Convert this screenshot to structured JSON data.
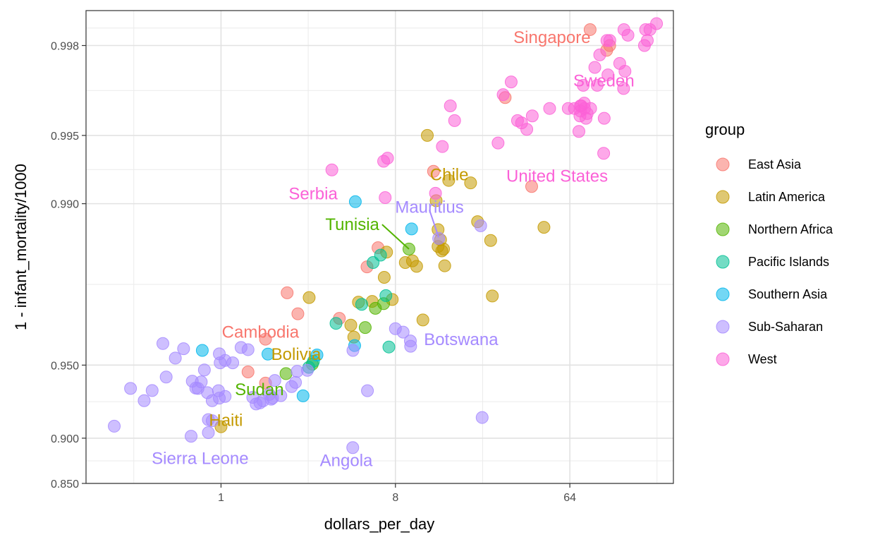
{
  "chart_data": {
    "type": "scatter",
    "xlabel": "dollars_per_day",
    "ylabel": "1 - infant_mortality/1000",
    "x_scale": "log2",
    "y_scale": "logit",
    "xlim": [
      0.2,
      220
    ],
    "ylim": [
      0.85,
      0.9986
    ],
    "x_ticks": [
      {
        "value": 1,
        "label": "1"
      },
      {
        "value": 8,
        "label": "8"
      },
      {
        "value": 64,
        "label": "64"
      }
    ],
    "y_ticks": [
      {
        "value": 0.85,
        "label": "0.850"
      },
      {
        "value": 0.9,
        "label": "0.900"
      },
      {
        "value": 0.95,
        "label": "0.950"
      },
      {
        "value": 0.99,
        "label": "0.990"
      },
      {
        "value": 0.995,
        "label": "0.995"
      },
      {
        "value": 0.998,
        "label": "0.998"
      }
    ],
    "grid": true,
    "legend": {
      "title": "group",
      "position": "right"
    },
    "groups": [
      {
        "name": "East Asia",
        "color": "#F8766D"
      },
      {
        "name": "Latin America",
        "color": "#C49A00"
      },
      {
        "name": "Northern Africa",
        "color": "#53B400"
      },
      {
        "name": "Pacific Islands",
        "color": "#00C094"
      },
      {
        "name": "Southern Asia",
        "color": "#00B6EB"
      },
      {
        "name": "Sub-Saharan",
        "color": "#A58AFF"
      },
      {
        "name": "West",
        "color": "#FB61D7"
      }
    ],
    "series": [
      {
        "name": "East Asia",
        "points": [
          [
            1.7,
            0.9405
          ],
          [
            1.7,
            0.9612
          ],
          [
            1.38,
            0.9466
          ],
          [
            2.2,
            0.9755
          ],
          [
            2.5,
            0.9698
          ],
          [
            4.1,
            0.9684
          ],
          [
            5.7,
            0.9811
          ],
          [
            6.5,
            0.9844
          ],
          [
            12.6,
            0.9928
          ],
          [
            40.6,
            0.9916
          ],
          [
            29.6,
            0.9966
          ],
          [
            81.5,
            0.9983
          ],
          [
            102.9,
            0.998
          ],
          [
            99.3,
            0.9979
          ]
        ]
      },
      {
        "name": "Latin America",
        "points": [
          [
            1.0,
            0.9101
          ],
          [
            2.86,
            0.9743
          ],
          [
            4.7,
            0.9662
          ],
          [
            4.87,
            0.962
          ],
          [
            5.15,
            0.9731
          ],
          [
            6.06,
            0.9733
          ],
          [
            7.0,
            0.979
          ],
          [
            7.7,
            0.9738
          ],
          [
            7.2,
            0.9837
          ],
          [
            9.0,
            0.9819
          ],
          [
            9.8,
            0.9822
          ],
          [
            10.3,
            0.9812
          ],
          [
            11.1,
            0.9679
          ],
          [
            11.7,
            0.995
          ],
          [
            13.0,
            0.9903
          ],
          [
            13.3,
            0.987
          ],
          [
            13.3,
            0.9846
          ],
          [
            13.9,
            0.9839
          ],
          [
            13.7,
            0.9856
          ],
          [
            14.4,
            0.9813
          ],
          [
            14.2,
            0.9842
          ],
          [
            15.1,
            0.9921
          ],
          [
            19.6,
            0.9919
          ],
          [
            21.3,
            0.988
          ],
          [
            24.9,
            0.9855
          ],
          [
            25.4,
            0.9747
          ],
          [
            47.0,
            0.9873
          ]
        ]
      },
      {
        "name": "Northern Africa",
        "points": [
          [
            2.17,
            0.9457
          ],
          [
            2.97,
            0.9505
          ],
          [
            5.58,
            0.9654
          ],
          [
            6.3,
            0.9714
          ],
          [
            6.95,
            0.9727
          ],
          [
            9.4,
            0.9842
          ]
        ]
      },
      {
        "name": "Pacific Islands",
        "points": [
          [
            2.85,
            0.9489
          ],
          [
            3.01,
            0.9518
          ],
          [
            3.94,
            0.9668
          ],
          [
            5.35,
            0.9725
          ],
          [
            6.13,
            0.9819
          ],
          [
            6.7,
            0.9832
          ],
          [
            7.14,
            0.9748
          ],
          [
            7.4,
            0.9581
          ]
        ]
      },
      {
        "name": "Southern Asia",
        "points": [
          [
            0.8,
            0.9567
          ],
          [
            1.75,
            0.9551
          ],
          [
            2.66,
            0.9328
          ],
          [
            3.14,
            0.9547
          ],
          [
            4.92,
            0.9587
          ],
          [
            4.96,
            0.9902
          ],
          [
            9.7,
            0.9871
          ]
        ]
      },
      {
        "name": "Sub-Saharan",
        "points": [
          [
            0.28,
            0.9105
          ],
          [
            0.34,
            0.9374
          ],
          [
            0.4,
            0.9296
          ],
          [
            0.44,
            0.9361
          ],
          [
            0.5,
            0.9595
          ],
          [
            0.52,
            0.9439
          ],
          [
            0.58,
            0.9533
          ],
          [
            0.64,
            0.9574
          ],
          [
            0.7,
            0.9018
          ],
          [
            0.71,
            0.9416
          ],
          [
            0.74,
            0.9376
          ],
          [
            0.76,
            0.9374
          ],
          [
            0.79,
            0.9412
          ],
          [
            0.82,
            0.9476
          ],
          [
            0.85,
            0.9348
          ],
          [
            0.86,
            0.905
          ],
          [
            0.98,
            0.9552
          ],
          [
            0.9,
            0.9296
          ],
          [
            0.86,
            0.9158
          ],
          [
            0.9,
            0.915
          ],
          [
            0.97,
            0.936
          ],
          [
            0.98,
            0.9313
          ],
          [
            0.99,
            0.9511
          ],
          [
            1.05,
            0.9522
          ],
          [
            1.05,
            0.9324
          ],
          [
            1.15,
            0.9511
          ],
          [
            1.27,
            0.9579
          ],
          [
            1.38,
            0.957
          ],
          [
            1.46,
            0.9318
          ],
          [
            1.52,
            0.9274
          ],
          [
            1.59,
            0.9281
          ],
          [
            1.65,
            0.9295
          ],
          [
            1.78,
            0.9337
          ],
          [
            1.82,
            0.9306
          ],
          [
            1.85,
            0.9314
          ],
          [
            1.9,
            0.942
          ],
          [
            2.04,
            0.9329
          ],
          [
            2.32,
            0.9385
          ],
          [
            2.43,
            0.9409
          ],
          [
            2.48,
            0.9469
          ],
          [
            2.8,
            0.9474
          ],
          [
            4.82,
            0.9567
          ],
          [
            4.81,
            0.891
          ],
          [
            5.73,
            0.936
          ],
          [
            8.0,
            0.965
          ],
          [
            8.77,
            0.9638
          ],
          [
            9.56,
            0.9605
          ],
          [
            9.59,
            0.9584
          ],
          [
            13.4,
            0.9858
          ],
          [
            22.1,
            0.9875
          ],
          [
            22.5,
            0.9175
          ]
        ]
      },
      {
        "name": "West",
        "points": [
          [
            3.75,
            0.9929
          ],
          [
            6.95,
            0.9935
          ],
          [
            7.28,
            0.9937
          ],
          [
            7.08,
            0.9906
          ],
          [
            12.9,
            0.991
          ],
          [
            14.0,
            0.9944
          ],
          [
            15.4,
            0.9963
          ],
          [
            16.2,
            0.9957
          ],
          [
            27.2,
            0.9946
          ],
          [
            28.9,
            0.9967
          ],
          [
            31.8,
            0.9971
          ],
          [
            34.3,
            0.9957
          ],
          [
            36.0,
            0.9956
          ],
          [
            38.3,
            0.9953
          ],
          [
            40.9,
            0.9959
          ],
          [
            50.3,
            0.9962
          ],
          [
            62.8,
            0.9962
          ],
          [
            67.6,
            0.9962
          ],
          [
            71.3,
            0.9952
          ],
          [
            72.2,
            0.9959
          ],
          [
            72.6,
            0.9963
          ],
          [
            72.6,
            0.9961
          ],
          [
            73.3,
            0.9963
          ],
          [
            75.1,
            0.997
          ],
          [
            76.0,
            0.9964
          ],
          [
            76.2,
            0.9962
          ],
          [
            77.6,
            0.9958
          ],
          [
            78.7,
            0.996
          ],
          [
            82.0,
            0.9962
          ],
          [
            86.2,
            0.9975
          ],
          [
            88.7,
            0.997
          ],
          [
            91.4,
            0.9978
          ],
          [
            96.4,
            0.9958
          ],
          [
            99.6,
            0.9981
          ],
          [
            103.1,
            0.9981
          ],
          [
            95.8,
            0.994
          ],
          [
            100.8,
            0.9973
          ],
          [
            122.0,
            0.9983
          ],
          [
            128.0,
            0.9982
          ],
          [
            116.0,
            0.9976
          ],
          [
            121.5,
            0.9969
          ],
          [
            123.5,
            0.9974
          ],
          [
            158.0,
            0.9983
          ],
          [
            161.2,
            0.9981
          ],
          [
            166.3,
            0.9983
          ],
          [
            155.8,
            0.998
          ],
          [
            179.9,
            0.9984
          ]
        ]
      }
    ],
    "annotations": [
      {
        "text": "Singapore",
        "group": "East Asia",
        "x": 82,
        "y": 0.99816,
        "anchor": "end",
        "point": null
      },
      {
        "text": "Sweden",
        "group": "West",
        "x": 96,
        "y": 0.99713,
        "anchor": "middle",
        "point": null
      },
      {
        "text": "Chile",
        "group": "Latin America",
        "x": 15.2,
        "y": 0.99255,
        "anchor": "middle",
        "point": null
      },
      {
        "text": "United States",
        "group": "West",
        "x": 55,
        "y": 0.99245,
        "anchor": "middle",
        "point": null
      },
      {
        "text": "Serbia",
        "group": "West",
        "x": 3.0,
        "y": 0.99095,
        "anchor": "middle",
        "point": null
      },
      {
        "text": "Mauritius",
        "group": "Sub-Saharan",
        "x": 12.0,
        "y": 0.98965,
        "anchor": "middle",
        "point": [
          13.4,
          0.98595
        ]
      },
      {
        "text": "Tunisia",
        "group": "Northern Africa",
        "x": 6.6,
        "y": 0.98766,
        "anchor": "end",
        "point": [
          9.4,
          0.9842
        ]
      },
      {
        "text": "Cambodia",
        "group": "East Asia",
        "x": 1.6,
        "y": 0.96377,
        "anchor": "middle",
        "point": null
      },
      {
        "text": "Botswana",
        "group": "Sub-Saharan",
        "x": 17.5,
        "y": 0.9611,
        "anchor": "middle",
        "point": null
      },
      {
        "text": "Bolivia",
        "group": "Latin America",
        "x": 2.45,
        "y": 0.95495,
        "anchor": "middle",
        "point": null
      },
      {
        "text": "Sudan",
        "group": "Northern Africa",
        "x": 1.58,
        "y": 0.93665,
        "anchor": "middle",
        "point": null
      },
      {
        "text": "Haiti",
        "group": "Latin America",
        "x": 1.06,
        "y": 0.9154,
        "anchor": "middle",
        "point": null
      },
      {
        "text": "Sierra Leone",
        "group": "Sub-Saharan",
        "x": 0.78,
        "y": 0.87965,
        "anchor": "middle",
        "point": null
      },
      {
        "text": "Angola",
        "group": "Sub-Saharan",
        "x": 4.45,
        "y": 0.8776,
        "anchor": "middle",
        "point": null
      }
    ]
  }
}
